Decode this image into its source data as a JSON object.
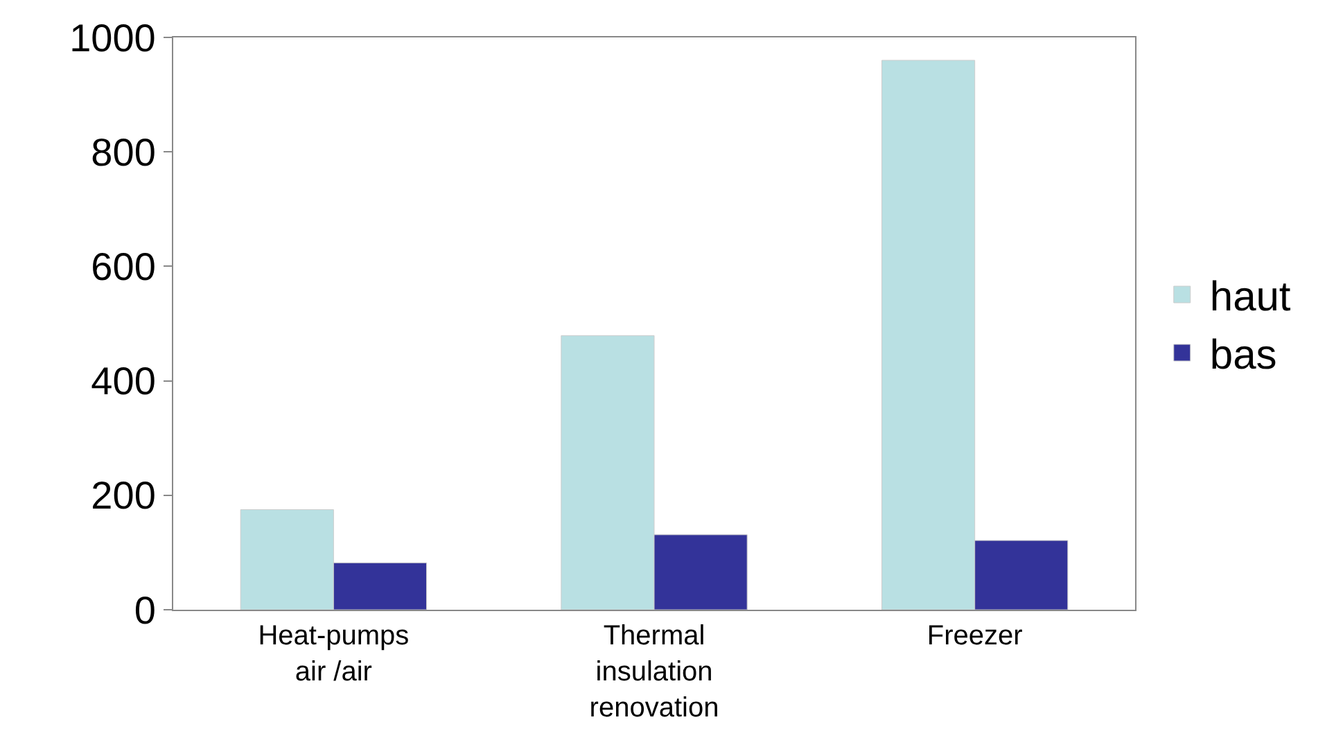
{
  "chart_data": {
    "type": "bar",
    "categories": [
      "Heat-pumps air /air",
      "Thermal insulation renovation",
      "Freezer"
    ],
    "series": [
      {
        "name": "haut",
        "color": "#b9e0e3",
        "values": [
          175,
          479,
          960
        ]
      },
      {
        "name": "bas",
        "color": "#333399",
        "values": [
          82,
          131,
          121
        ]
      }
    ],
    "ylim": [
      0,
      1000
    ],
    "yticks": [
      0,
      200,
      400,
      600,
      800,
      1000
    ],
    "legend": "right"
  }
}
